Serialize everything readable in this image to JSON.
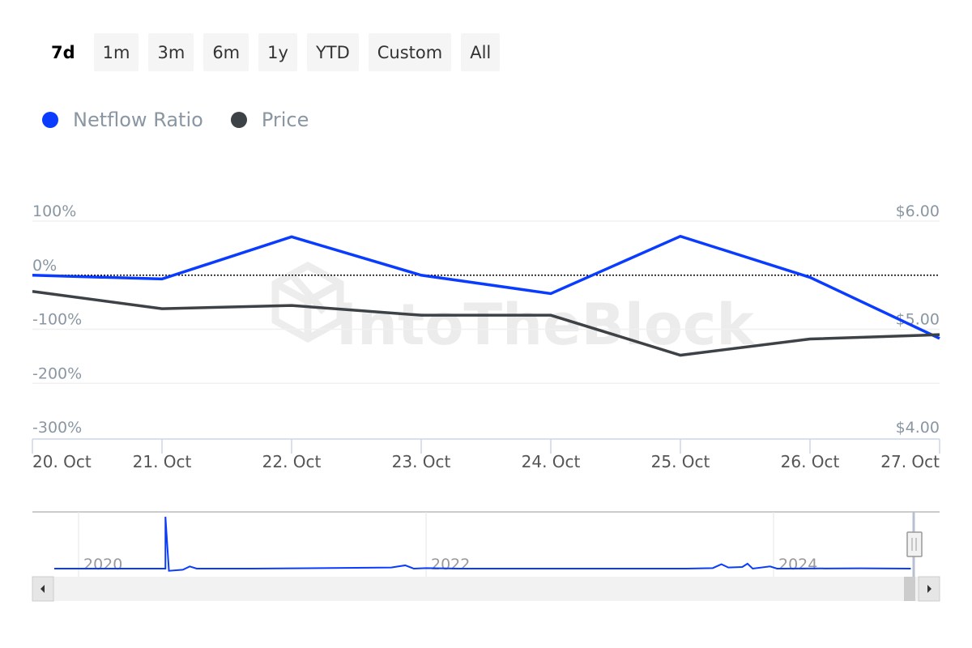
{
  "range_selector": {
    "buttons": [
      "7d",
      "1m",
      "3m",
      "6m",
      "1y",
      "YTD",
      "Custom",
      "All"
    ],
    "selected": "7d"
  },
  "legend": [
    {
      "label": "Netflow Ratio",
      "color": "#0a3cff"
    },
    {
      "label": "Price",
      "color": "#3d4247"
    }
  ],
  "watermark": "IntoTheBlock",
  "chart_data": {
    "type": "line",
    "categories": [
      "20. Oct",
      "21. Oct",
      "22. Oct",
      "23. Oct",
      "24. Oct",
      "25. Oct",
      "26. Oct",
      "27. Oct"
    ],
    "series": [
      {
        "name": "Netflow Ratio",
        "axis": "left",
        "color": "#0a3cff",
        "values": [
          0,
          -7,
          71,
          0,
          -34,
          72,
          -4,
          -117
        ]
      },
      {
        "name": "Price",
        "axis": "right",
        "color": "#3d4247",
        "values": [
          5.35,
          5.19,
          5.22,
          5.13,
          5.13,
          4.76,
          4.91,
          4.95
        ]
      }
    ],
    "y_left": {
      "ticks": [
        "100%",
        "0%",
        "-100%",
        "-200%",
        "-300%"
      ],
      "range": [
        -300,
        100
      ]
    },
    "y_right": {
      "ticks": [
        "$6.00",
        "$5.00",
        "$4.00"
      ],
      "range": [
        4,
        6
      ]
    },
    "zero_line": "dotted",
    "grid": true,
    "legend_placement": "top-left",
    "navigator": {
      "year_labels": [
        "2020",
        "2022",
        "2024"
      ],
      "series_points": [
        [
          2019.86,
          0
        ],
        [
          2020.36,
          0
        ],
        [
          2020.5,
          0
        ],
        [
          2020.5,
          950
        ],
        [
          2020.52,
          -40
        ],
        [
          2020.6,
          -20
        ],
        [
          2020.64,
          40
        ],
        [
          2020.68,
          0
        ],
        [
          2021.0,
          0
        ],
        [
          2021.8,
          20
        ],
        [
          2021.88,
          60
        ],
        [
          2021.93,
          0
        ],
        [
          2022.0,
          10
        ],
        [
          2022.2,
          0
        ],
        [
          2023.5,
          0
        ],
        [
          2023.65,
          10
        ],
        [
          2023.7,
          80
        ],
        [
          2023.74,
          20
        ],
        [
          2023.82,
          30
        ],
        [
          2023.85,
          90
        ],
        [
          2023.88,
          0
        ],
        [
          2023.98,
          40
        ],
        [
          2024.02,
          0
        ],
        [
          2024.5,
          5
        ],
        [
          2024.79,
          0
        ]
      ]
    }
  }
}
